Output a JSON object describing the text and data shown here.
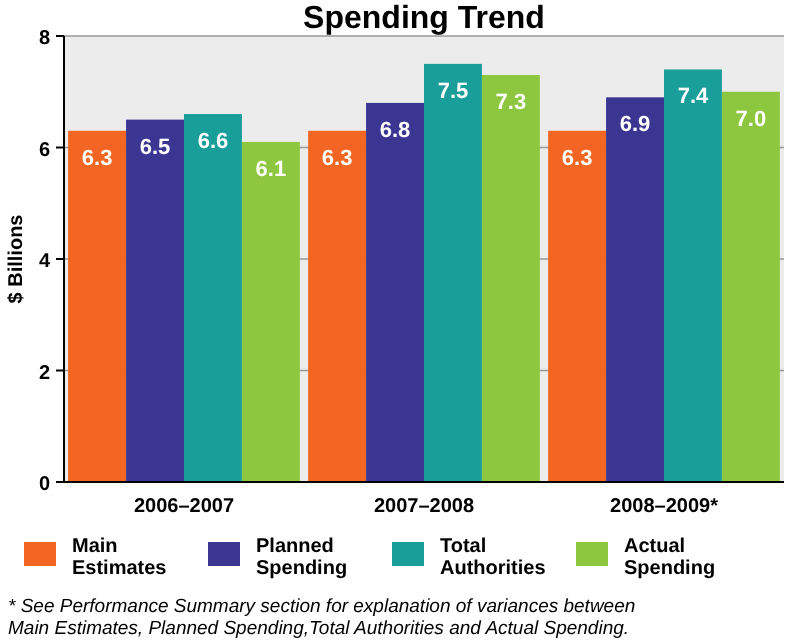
{
  "chart_data": {
    "type": "bar",
    "title": "Spending Trend",
    "ylabel": "$ Billions",
    "categories": [
      "2006–2007",
      "2007–2008",
      "2008–2009*"
    ],
    "series": [
      {
        "name": "Main Estimates",
        "color": "#f26522",
        "values": [
          6.3,
          6.3,
          6.3
        ],
        "value_labels": [
          "6.3",
          "6.3",
          "6.3"
        ]
      },
      {
        "name": "Planned Spending",
        "color": "#3b3691",
        "values": [
          6.5,
          6.8,
          6.9
        ],
        "value_labels": [
          "6.5",
          "6.8",
          "6.9"
        ]
      },
      {
        "name": "Total Authorities",
        "color": "#1a9e9a",
        "values": [
          6.6,
          7.5,
          7.4
        ],
        "value_labels": [
          "6.6",
          "7.5",
          "7.4"
        ]
      },
      {
        "name": "Actual Spending",
        "color": "#8dc63f",
        "values": [
          6.1,
          7.3,
          7.0
        ],
        "value_labels": [
          "6.1",
          "7.3",
          "7.0"
        ]
      }
    ],
    "ylim": [
      0,
      8
    ],
    "yticks": [
      0,
      2,
      4,
      6,
      8
    ],
    "grid": "y",
    "legend": "bottom",
    "annotations": [
      "* See Performance Summary section for explanation of variances between Main Estimates, Planned Spending,Total Authorities and Actual Spending."
    ]
  }
}
